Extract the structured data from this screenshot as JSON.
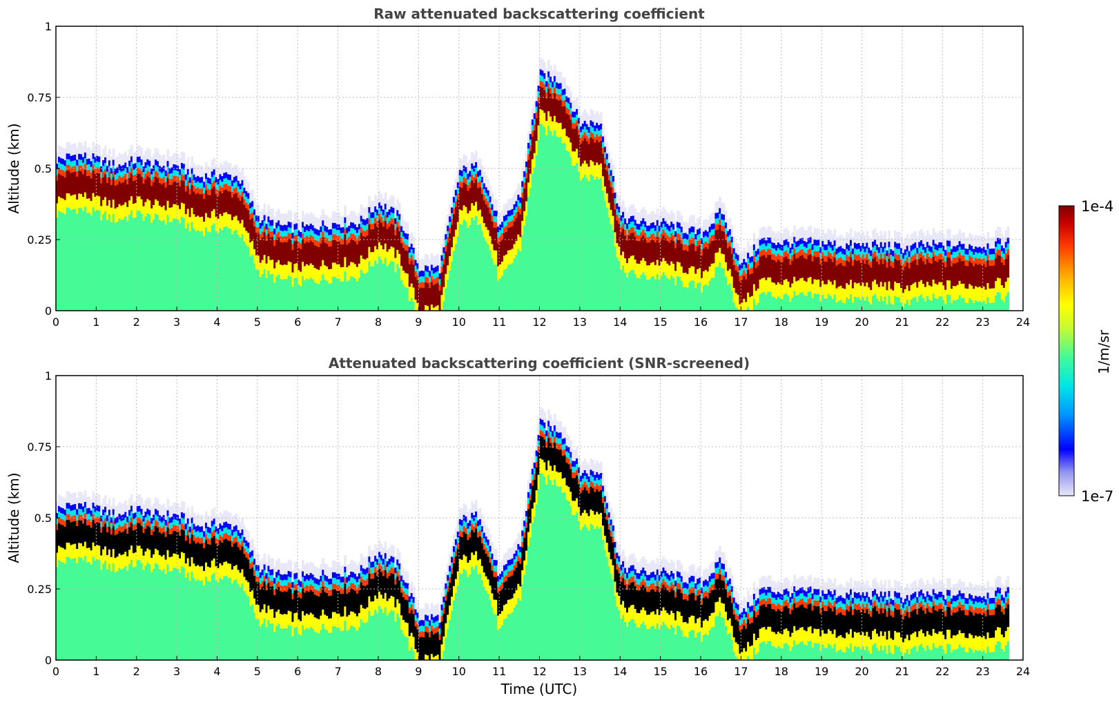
{
  "chart_data": [
    {
      "type": "heatmap",
      "title": "Raw attenuated backscattering coefficient",
      "xlabel": "",
      "ylabel": "Altitude (km)",
      "xlim": [
        0,
        24
      ],
      "ylim": [
        0,
        1
      ],
      "x_ticks": [
        "0",
        "1",
        "2",
        "3",
        "4",
        "5",
        "6",
        "7",
        "8",
        "9",
        "10",
        "11",
        "12",
        "13",
        "14",
        "15",
        "16",
        "17",
        "18",
        "19",
        "20",
        "21",
        "22",
        "23",
        "24"
      ],
      "y_ticks": [
        "0",
        "0.25",
        "0.5",
        "0.75",
        "1"
      ],
      "grid": true,
      "data_end_time": 23.65,
      "cloud_base_profile": {
        "time": [
          0,
          0.5,
          1,
          1.5,
          2,
          2.5,
          3,
          3.5,
          4,
          4.5,
          5,
          5.5,
          6,
          6.5,
          7,
          7.5,
          8,
          8.5,
          9,
          9.5,
          10,
          10.5,
          11,
          11.5,
          12,
          12.5,
          13,
          13.5,
          14,
          14.5,
          15,
          15.5,
          16,
          16.5,
          17,
          17.5,
          18,
          18.5,
          19,
          19.5,
          20,
          20.5,
          21,
          21.5,
          22,
          22.5,
          23,
          23.6
        ],
        "altitude_km": [
          0.42,
          0.44,
          0.42,
          0.4,
          0.42,
          0.4,
          0.4,
          0.36,
          0.37,
          0.36,
          0.22,
          0.19,
          0.18,
          0.19,
          0.2,
          0.2,
          0.27,
          0.22,
          0.04,
          0.04,
          0.38,
          0.4,
          0.18,
          0.3,
          0.72,
          0.7,
          0.55,
          0.55,
          0.22,
          0.2,
          0.2,
          0.18,
          0.16,
          0.24,
          0.05,
          0.14,
          0.13,
          0.13,
          0.13,
          0.12,
          0.12,
          0.12,
          0.11,
          0.12,
          0.12,
          0.12,
          0.12,
          0.13
        ]
      }
    },
    {
      "type": "heatmap",
      "title": "Attenuated backscattering coefficient (SNR-screened)",
      "xlabel": "Time (UTC)",
      "ylabel": "Altitude (km)",
      "xlim": [
        0,
        24
      ],
      "ylim": [
        0,
        1
      ],
      "x_ticks": [
        "0",
        "1",
        "2",
        "3",
        "4",
        "5",
        "6",
        "7",
        "8",
        "9",
        "10",
        "11",
        "12",
        "13",
        "14",
        "15",
        "16",
        "17",
        "18",
        "19",
        "20",
        "21",
        "22",
        "23",
        "24"
      ],
      "y_ticks": [
        "0",
        "0.25",
        "0.5",
        "0.75",
        "1"
      ],
      "grid": true,
      "data_end_time": 23.65,
      "screened_color": "#000000"
    }
  ],
  "colorbar": {
    "label": "1/m/sr",
    "max_label": "1e-4",
    "min_label": "1e-7",
    "scale": "log",
    "colors": [
      "#e8e8f8",
      "#9696f0",
      "#0000ff",
      "#0096ff",
      "#00e6e6",
      "#46fa96",
      "#c8fa32",
      "#ffff00",
      "#ffaa00",
      "#ff3c00",
      "#c80000",
      "#800000"
    ]
  }
}
